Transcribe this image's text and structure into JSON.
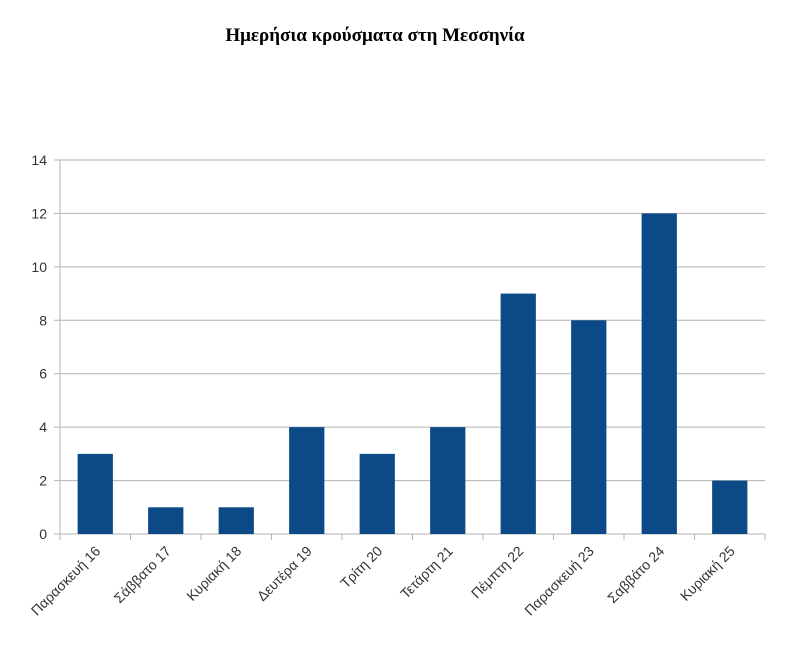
{
  "chart_data": {
    "type": "bar",
    "title": "Ημερήσια κρούσματα στη Μεσσηνία",
    "xlabel": "",
    "ylabel": "",
    "categories": [
      "Παρασκευή 16",
      "Σάββατο 17",
      "Κυριακή 18",
      "Δευτέρα 19",
      "Τρίτη 20",
      "Τετάρτη 21",
      "Πέμπτη 22",
      "Παρασκευή 23",
      "Σαββάτο 24",
      "Κυριακή 25"
    ],
    "values": [
      3,
      1,
      1,
      4,
      3,
      4,
      9,
      8,
      12,
      2
    ],
    "ylim": [
      0,
      14
    ],
    "yticks": [
      0,
      2,
      4,
      6,
      8,
      10,
      12,
      14
    ],
    "grid": true,
    "legend": "none",
    "bar_color": "#0b4a86"
  }
}
